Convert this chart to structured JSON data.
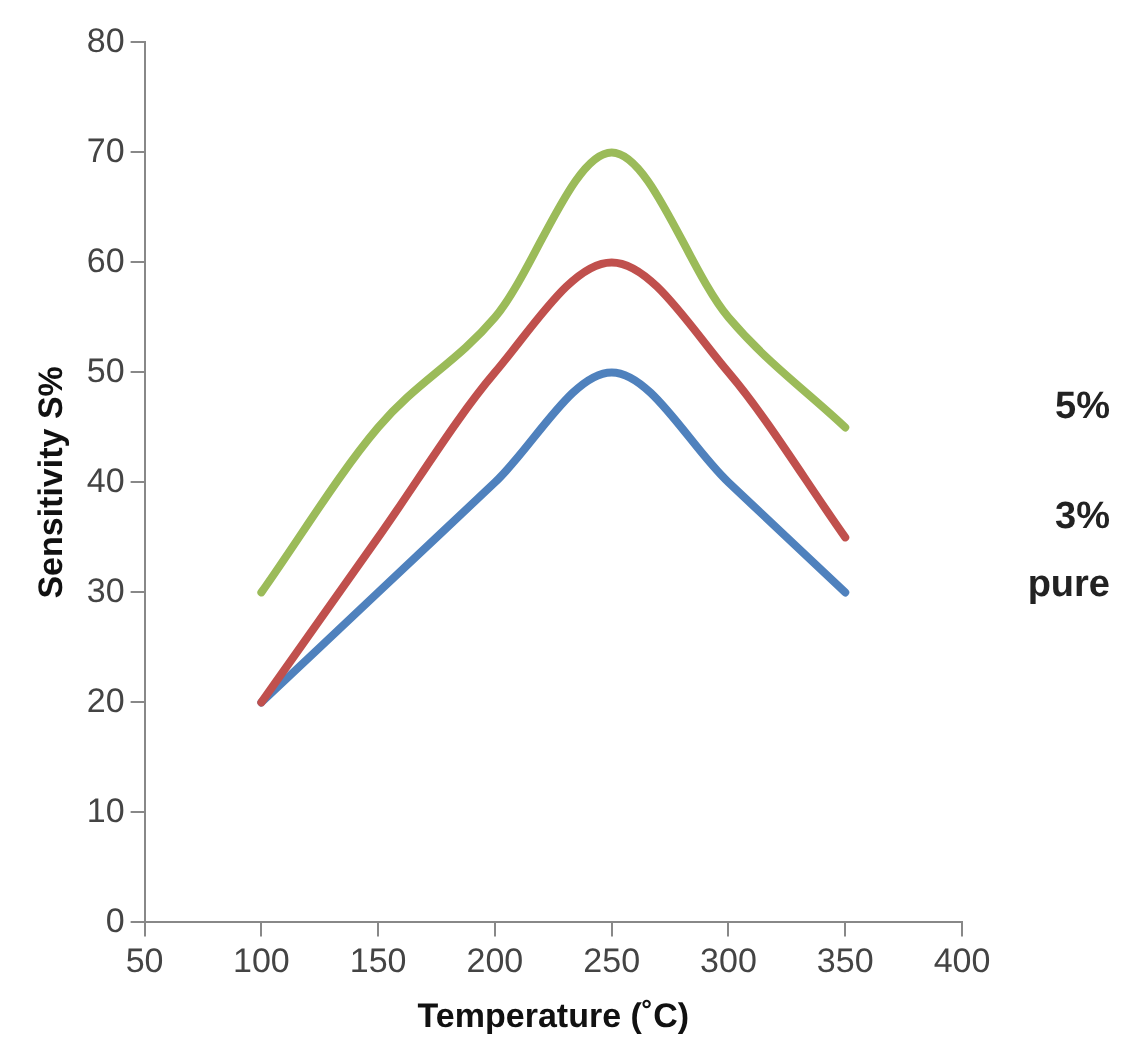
{
  "chart_data": {
    "type": "line",
    "xlabel": "Temperature (˚C)",
    "ylabel": "Sensitivity S%",
    "x": [
      100,
      150,
      200,
      250,
      300,
      350
    ],
    "series": [
      {
        "name": "5%",
        "color": "#9bbb59",
        "values": [
          30,
          45,
          55,
          70,
          55,
          45
        ]
      },
      {
        "name": "3%",
        "color": "#c0504d",
        "values": [
          20,
          35,
          50,
          60,
          50,
          35
        ]
      },
      {
        "name": "pure",
        "color": "#4f81bd",
        "values": [
          20,
          30,
          40,
          50,
          40,
          30
        ]
      }
    ],
    "xlim": [
      50,
      400
    ],
    "xticks": [
      50,
      100,
      150,
      200,
      250,
      300,
      350,
      400
    ],
    "ylim": [
      0,
      80
    ],
    "yticks": [
      0,
      10,
      20,
      30,
      40,
      50,
      60,
      70,
      80
    ],
    "grid": false,
    "legend": "right",
    "marker": "none",
    "line_style": "solid"
  }
}
